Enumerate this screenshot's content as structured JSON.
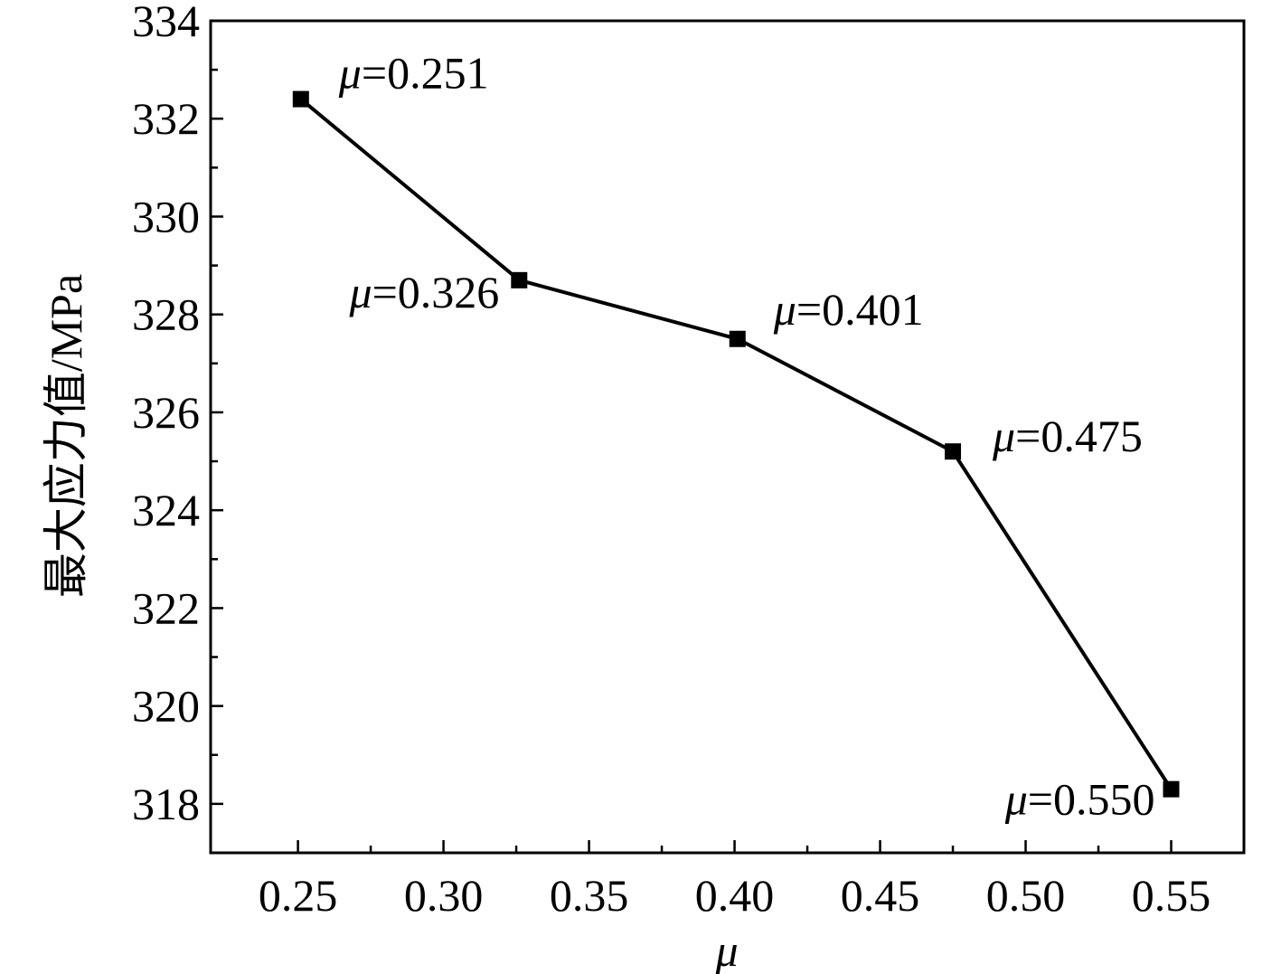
{
  "chart_data": {
    "type": "line",
    "title": "",
    "xlabel": "μ",
    "ylabel": "最大应力值/MPa",
    "xlim": [
      0.22,
      0.575
    ],
    "ylim": [
      317,
      334
    ],
    "x_ticks": [
      "0.25",
      "0.30",
      "0.35",
      "0.40",
      "0.45",
      "0.50",
      "0.55"
    ],
    "y_ticks": [
      "318",
      "320",
      "322",
      "324",
      "326",
      "328",
      "330",
      "332",
      "334"
    ],
    "grid": false,
    "legend": "none",
    "series": [
      {
        "x": [
          0.251,
          0.326,
          0.401,
          0.475,
          0.55
        ],
        "values": [
          332.4,
          328.7,
          327.5,
          325.2,
          318.3
        ],
        "marker": "square",
        "color": "#000000",
        "point_labels": [
          {
            "symbol": "μ",
            "text": "=0.251"
          },
          {
            "symbol": "μ",
            "text": "=0.326"
          },
          {
            "symbol": "μ",
            "text": "=0.401"
          },
          {
            "symbol": "μ",
            "text": "=0.475"
          },
          {
            "symbol": "μ",
            "text": "=0.550"
          }
        ]
      }
    ]
  }
}
